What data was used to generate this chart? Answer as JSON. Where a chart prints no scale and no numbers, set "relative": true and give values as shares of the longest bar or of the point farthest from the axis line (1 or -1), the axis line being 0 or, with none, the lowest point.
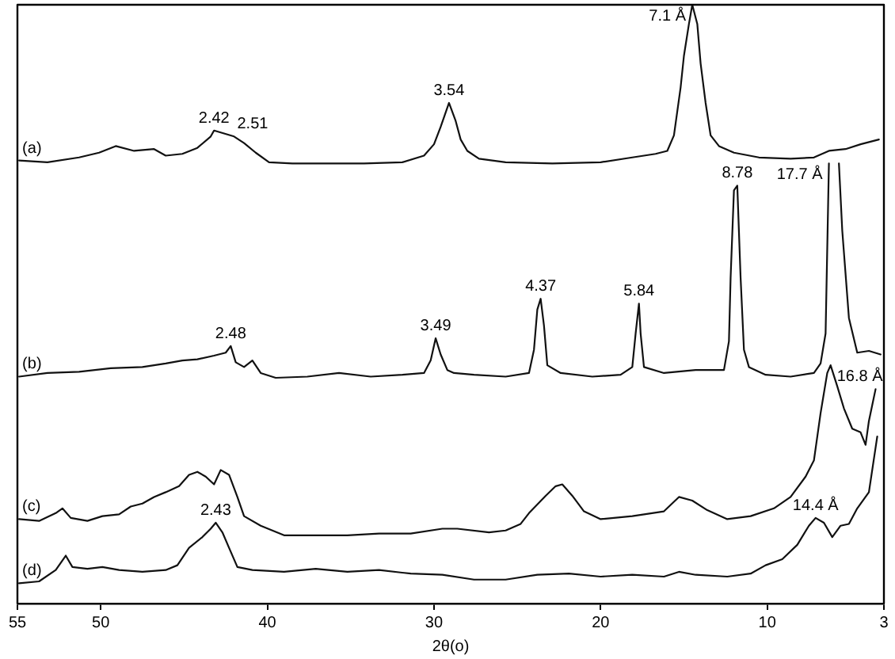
{
  "chart_data": {
    "type": "line",
    "xlabel": "2θ(o)",
    "xlim": [
      55,
      3
    ],
    "xticks": [
      55,
      50,
      40,
      30,
      20,
      10,
      3
    ],
    "relative": true,
    "tick_labels": "x",
    "grid": false,
    "legend": false,
    "marker": "none",
    "line_style": "solid",
    "series": [
      {
        "name": "(a)",
        "color": "#111111",
        "x": [
          54.9,
          53.2,
          51.3,
          50.1,
          49.1,
          48.0,
          46.8,
          46.1,
          45.1,
          44.2,
          43.4,
          43.2,
          42.6,
          42.0,
          41.4,
          40.7,
          39.9,
          38.5,
          37.1,
          34.2,
          31.9,
          30.6,
          30.0,
          29.6,
          29.1,
          28.7,
          28.4,
          28.0,
          27.3,
          25.7,
          22.9,
          20.0,
          18.1,
          16.7,
          16.0,
          15.6,
          15.2,
          15.0,
          14.7,
          14.5,
          14.2,
          14.0,
          13.7,
          13.4,
          12.9,
          12.0,
          10.5,
          8.6,
          7.2,
          6.3,
          5.3,
          4.4,
          3.3
        ],
        "values": [
          0.74,
          0.737,
          0.745,
          0.753,
          0.764,
          0.756,
          0.759,
          0.748,
          0.751,
          0.761,
          0.78,
          0.79,
          0.785,
          0.78,
          0.769,
          0.753,
          0.737,
          0.735,
          0.735,
          0.735,
          0.737,
          0.748,
          0.767,
          0.796,
          0.836,
          0.806,
          0.775,
          0.756,
          0.743,
          0.737,
          0.735,
          0.737,
          0.745,
          0.751,
          0.756,
          0.782,
          0.862,
          0.915,
          0.968,
          1.0,
          0.968,
          0.902,
          0.836,
          0.782,
          0.764,
          0.753,
          0.745,
          0.743,
          0.745,
          0.756,
          0.759,
          0.767,
          0.775
        ]
      },
      {
        "name": "(b)",
        "color": "#111111",
        "x": [
          54.9,
          53.2,
          51.3,
          49.4,
          47.5,
          46.1,
          45.1,
          44.2,
          43.2,
          42.5,
          42.2,
          41.9,
          41.4,
          40.9,
          40.4,
          39.5,
          37.6,
          35.7,
          33.8,
          31.9,
          30.6,
          30.2,
          29.9,
          29.6,
          29.2,
          28.8,
          27.6,
          25.7,
          24.3,
          24.0,
          23.8,
          23.6,
          23.4,
          23.2,
          22.4,
          20.5,
          18.8,
          18.1,
          17.9,
          17.7,
          17.6,
          17.4,
          16.2,
          14.3,
          12.6,
          12.3,
          12.2,
          12.0,
          11.8,
          11.6,
          11.4,
          11.1,
          10.1,
          8.6,
          7.2,
          6.8,
          6.5,
          6.3,
          6.0,
          5.7,
          5.5,
          5.1,
          4.6,
          3.9,
          3.2
        ],
        "values": [
          0.379,
          0.385,
          0.387,
          0.393,
          0.395,
          0.401,
          0.406,
          0.408,
          0.414,
          0.419,
          0.43,
          0.403,
          0.395,
          0.406,
          0.385,
          0.377,
          0.379,
          0.385,
          0.379,
          0.382,
          0.385,
          0.406,
          0.443,
          0.416,
          0.39,
          0.385,
          0.382,
          0.379,
          0.385,
          0.424,
          0.491,
          0.509,
          0.464,
          0.398,
          0.385,
          0.379,
          0.382,
          0.395,
          0.451,
          0.501,
          0.451,
          0.395,
          0.385,
          0.39,
          0.39,
          0.438,
          0.544,
          0.69,
          0.698,
          0.544,
          0.424,
          0.395,
          0.382,
          0.379,
          0.385,
          0.401,
          0.451,
          0.735,
          null,
          0.735,
          0.623,
          0.477,
          0.419,
          0.422,
          0.416
        ]
      },
      {
        "name": "(c)",
        "color": "#111111",
        "x": [
          54.9,
          53.7,
          52.7,
          52.3,
          51.8,
          50.8,
          49.9,
          48.9,
          48.2,
          47.5,
          46.8,
          46.1,
          45.3,
          44.7,
          44.2,
          43.7,
          43.2,
          42.8,
          42.3,
          41.8,
          41.4,
          40.4,
          39.0,
          37.1,
          35.2,
          33.3,
          31.4,
          29.5,
          28.6,
          26.7,
          25.7,
          24.8,
          24.3,
          23.3,
          22.7,
          22.3,
          21.7,
          21.0,
          20.0,
          18.1,
          16.2,
          15.3,
          14.5,
          13.6,
          12.4,
          11.0,
          9.6,
          8.6,
          7.7,
          7.2,
          6.8,
          6.4,
          6.2,
          5.8,
          5.4,
          4.9,
          4.4,
          4.1,
          3.9,
          3.5
        ],
        "values": [
          0.141,
          0.138,
          0.151,
          0.159,
          0.143,
          0.138,
          0.146,
          0.149,
          0.162,
          0.167,
          0.178,
          0.186,
          0.196,
          0.215,
          0.22,
          0.212,
          0.199,
          0.223,
          0.215,
          0.178,
          0.146,
          0.13,
          0.114,
          0.114,
          0.114,
          0.117,
          0.117,
          0.125,
          0.125,
          0.119,
          0.122,
          0.133,
          0.151,
          0.18,
          0.196,
          0.199,
          0.18,
          0.154,
          0.141,
          0.146,
          0.154,
          0.178,
          0.172,
          0.156,
          0.141,
          0.146,
          0.159,
          0.178,
          0.212,
          0.239,
          0.318,
          0.385,
          0.398,
          0.363,
          0.326,
          0.292,
          0.286,
          0.265,
          0.305,
          0.358
        ]
      },
      {
        "name": "(d)",
        "color": "#111111",
        "x": [
          54.9,
          53.7,
          52.7,
          52.1,
          51.7,
          50.8,
          49.9,
          48.9,
          47.5,
          46.1,
          45.4,
          44.7,
          43.9,
          43.4,
          43.1,
          42.7,
          42.3,
          41.8,
          40.9,
          39.0,
          37.1,
          35.2,
          33.3,
          31.4,
          29.5,
          27.6,
          25.7,
          23.8,
          21.9,
          20.0,
          18.1,
          16.2,
          15.3,
          14.3,
          12.4,
          11.0,
          10.1,
          9.1,
          8.2,
          7.5,
          7.1,
          6.6,
          6.1,
          5.6,
          5.1,
          4.6,
          3.9,
          3.4
        ],
        "values": [
          0.034,
          0.037,
          0.056,
          0.08,
          0.061,
          0.058,
          0.061,
          0.056,
          0.053,
          0.056,
          0.064,
          0.093,
          0.111,
          0.125,
          0.135,
          0.119,
          0.093,
          0.061,
          0.056,
          0.053,
          0.058,
          0.053,
          0.056,
          0.05,
          0.048,
          0.04,
          0.04,
          0.048,
          0.05,
          0.045,
          0.048,
          0.045,
          0.053,
          0.048,
          0.045,
          0.05,
          0.064,
          0.074,
          0.098,
          0.13,
          0.143,
          0.135,
          0.111,
          0.13,
          0.133,
          0.159,
          0.186,
          0.279
        ]
      }
    ],
    "annotations": [
      {
        "text": "2.42",
        "x": 43.2,
        "y": 0.79
      },
      {
        "text": "2.51",
        "x": 42.0,
        "y": 0.78
      },
      {
        "text": "3.54",
        "x": 29.1,
        "y": 0.836
      },
      {
        "text": "7.1 Å",
        "x": 14.5,
        "y": 1.0
      },
      {
        "text": "2.48",
        "x": 42.2,
        "y": 0.43
      },
      {
        "text": "3.49",
        "x": 29.9,
        "y": 0.443
      },
      {
        "text": "4.37",
        "x": 23.6,
        "y": 0.509
      },
      {
        "text": "5.84",
        "x": 17.7,
        "y": 0.501
      },
      {
        "text": "8.78",
        "x": 11.8,
        "y": 0.698
      },
      {
        "text": "17.7 Å",
        "x": 6.3,
        "y": 0.735
      },
      {
        "text": "16.8 Å",
        "x": 6.2,
        "y": 0.398
      },
      {
        "text": "2.43",
        "x": 43.1,
        "y": 0.135
      },
      {
        "text": "14.4 Å",
        "x": 7.1,
        "y": 0.143
      }
    ]
  }
}
